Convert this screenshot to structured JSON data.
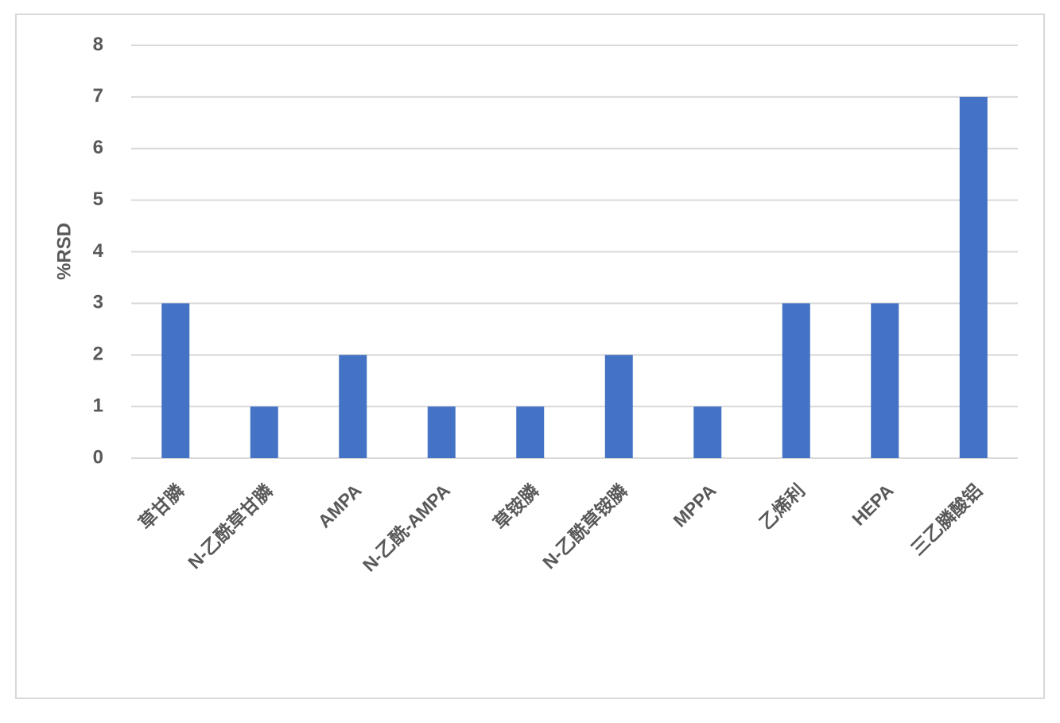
{
  "chart_data": {
    "type": "bar",
    "y_label": "%RSD",
    "categories": [
      "草甘膦",
      "N-乙酰草甘膦",
      "AMPA",
      "N-乙酰-AMPA",
      "草铵膦",
      "N-乙酰草铵膦",
      "MPPA",
      "乙烯利",
      "HEPA",
      "三乙膦酸铝"
    ],
    "values": [
      3,
      1,
      2,
      1,
      1,
      2,
      1,
      3,
      3,
      7
    ],
    "color": "#4472c4",
    "ylim": [
      0,
      8
    ],
    "yticks": [
      0,
      1,
      2,
      3,
      4,
      5,
      6,
      7,
      8
    ],
    "grid": true
  }
}
